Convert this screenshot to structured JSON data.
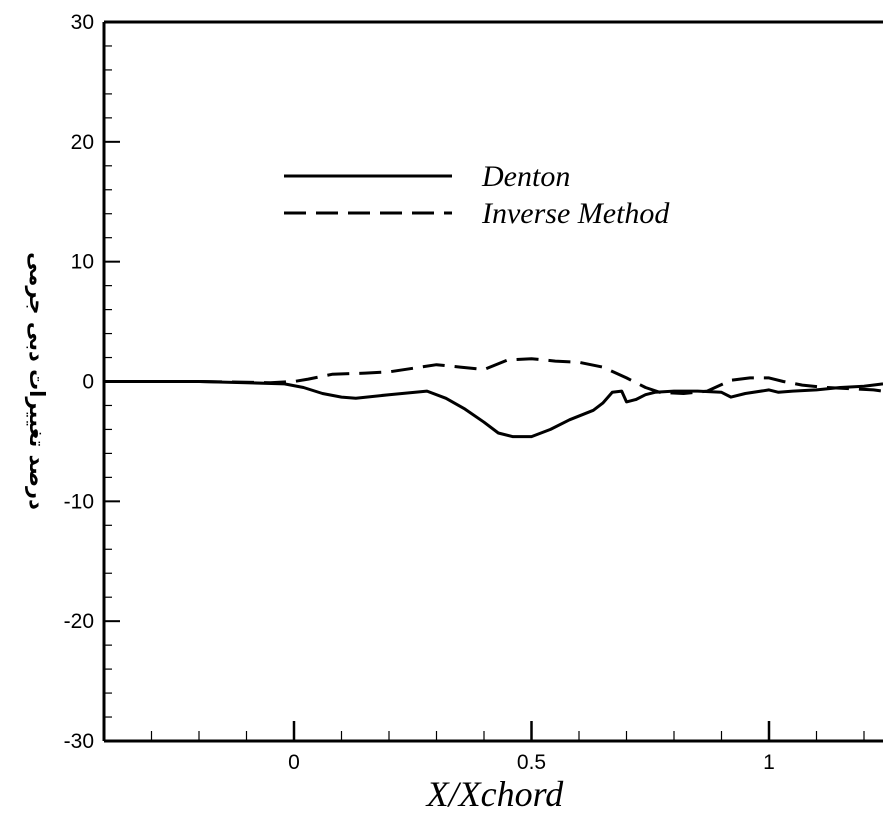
{
  "chart_data": {
    "type": "line",
    "title": "",
    "xlabel": "X/Xchord",
    "ylabel": "درصد تغییرات دبی جرمی",
    "xlim": [
      -0.4,
      1.24
    ],
    "ylim": [
      -30,
      30
    ],
    "x_ticks": [
      {
        "value": 0,
        "label": "0"
      },
      {
        "value": 0.5,
        "label": "0.5"
      },
      {
        "value": 1,
        "label": "1"
      }
    ],
    "y_ticks": [
      {
        "value": 30,
        "label": "30"
      },
      {
        "value": 20,
        "label": "20"
      },
      {
        "value": 10,
        "label": "10"
      },
      {
        "value": 0,
        "label": "0"
      },
      {
        "value": -10,
        "label": "-10"
      },
      {
        "value": -20,
        "label": "-20"
      },
      {
        "value": -30,
        "label": "-30"
      }
    ],
    "grid": false,
    "legend_position": "upper-center",
    "series": [
      {
        "name": "Denton",
        "style": "solid",
        "x": [
          -0.4,
          -0.3,
          -0.2,
          -0.1,
          -0.02,
          0.02,
          0.06,
          0.1,
          0.13,
          0.2,
          0.28,
          0.32,
          0.36,
          0.4,
          0.43,
          0.46,
          0.5,
          0.54,
          0.58,
          0.63,
          0.65,
          0.67,
          0.69,
          0.7,
          0.72,
          0.74,
          0.76,
          0.8,
          0.85,
          0.9,
          0.92,
          0.95,
          1.0,
          1.02,
          1.05,
          1.1,
          1.15,
          1.2,
          1.24
        ],
        "y": [
          0,
          0,
          0,
          -0.1,
          -0.2,
          -0.5,
          -1.0,
          -1.3,
          -1.4,
          -1.1,
          -0.8,
          -1.4,
          -2.3,
          -3.4,
          -4.3,
          -4.6,
          -4.6,
          -4.0,
          -3.2,
          -2.4,
          -1.8,
          -0.9,
          -0.8,
          -1.7,
          -1.5,
          -1.1,
          -0.9,
          -0.8,
          -0.8,
          -0.9,
          -1.3,
          -1.0,
          -0.7,
          -0.9,
          -0.8,
          -0.7,
          -0.5,
          -0.4,
          -0.2
        ]
      },
      {
        "name": "Inverse Method",
        "style": "dashed",
        "x": [
          -0.4,
          -0.2,
          -0.05,
          0.0,
          0.03,
          0.08,
          0.15,
          0.2,
          0.25,
          0.3,
          0.35,
          0.4,
          0.45,
          0.5,
          0.55,
          0.6,
          0.65,
          0.7,
          0.74,
          0.77,
          0.82,
          0.87,
          0.92,
          0.96,
          1.0,
          1.03,
          1.07,
          1.12,
          1.17,
          1.22,
          1.24
        ],
        "y": [
          0,
          0,
          -0.1,
          0.0,
          0.2,
          0.6,
          0.7,
          0.8,
          1.1,
          1.4,
          1.2,
          1.0,
          1.8,
          1.9,
          1.7,
          1.6,
          1.2,
          0.3,
          -0.5,
          -0.9,
          -1.0,
          -0.8,
          0.1,
          0.3,
          0.3,
          0.0,
          -0.3,
          -0.5,
          -0.6,
          -0.7,
          -0.8
        ]
      }
    ]
  }
}
